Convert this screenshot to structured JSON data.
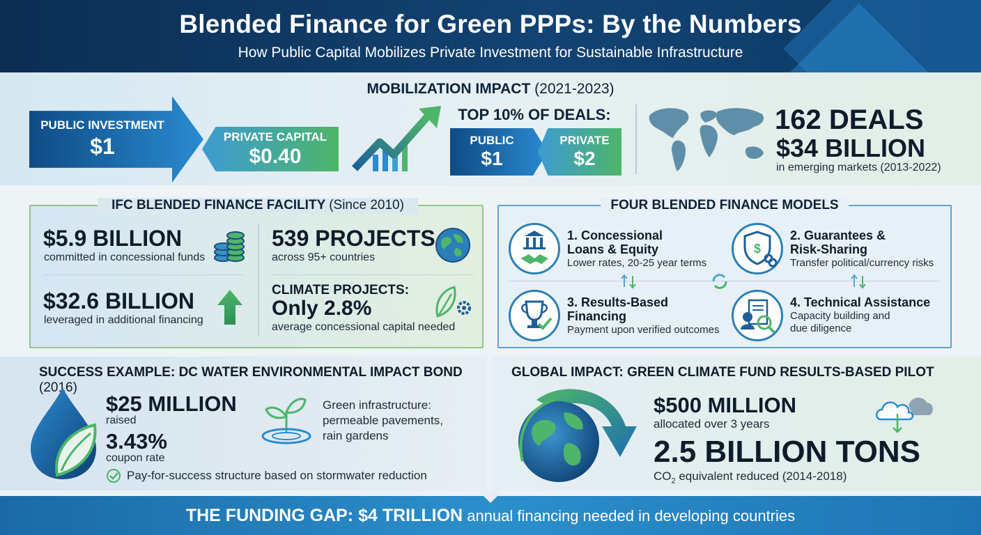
{
  "header": {
    "title": "Blended Finance for Green PPPs: By the Numbers",
    "subtitle": "How Public Capital Mobilizes Private Investment for Sustainable Infrastructure"
  },
  "mobilization": {
    "title": "MOBILIZATION IMPACT",
    "years": "(2021-2023)",
    "public_label": "PUBLIC INVESTMENT",
    "public_value": "$1",
    "private_label": "PRIVATE CAPITAL",
    "private_value": "$0.40",
    "top_title": "TOP 10% OF DEALS:",
    "top_public_label": "PUBLIC",
    "top_public_value": "$1",
    "top_private_label": "PRIVATE",
    "top_private_value": "$2",
    "deals_count": "162 DEALS",
    "deals_value": "$34 BILLION",
    "deals_note": "in emerging markets (2013-2022)"
  },
  "ifc": {
    "title": "IFC BLENDED FINANCE FACILITY",
    "since": "(Since 2010)",
    "committed_value": "$5.9 BILLION",
    "committed_label": "committed in concessional funds",
    "projects_value": "539 PROJECTS",
    "projects_label": "across 95+ countries",
    "leveraged_value": "$32.6 BILLION",
    "leveraged_label": "leveraged in additional financing",
    "climate_title": "CLIMATE PROJECTS:",
    "climate_value": "Only 2.8%",
    "climate_label": "average concessional capital needed"
  },
  "models": {
    "title": "FOUR BLENDED FINANCE MODELS",
    "items": [
      {
        "title_l1": "1. Concessional",
        "title_l2": "Loans & Equity",
        "desc_l1": "Lower rates, 20-25 year terms",
        "desc_l2": ""
      },
      {
        "title_l1": "2. Guarantees &",
        "title_l2": "Risk-Sharing",
        "desc_l1": "Transfer political/currency risks",
        "desc_l2": ""
      },
      {
        "title_l1": "3. Results-Based",
        "title_l2": "Financing",
        "desc_l1": "Payment upon verified outcomes",
        "desc_l2": ""
      },
      {
        "title_l1": "4. Technical Assistance",
        "title_l2": "",
        "desc_l1": "Capacity building and",
        "desc_l2": "due diligence"
      }
    ]
  },
  "dc_water": {
    "title": "SUCCESS EXAMPLE: DC WATER ENVIRONMENTAL IMPACT BOND",
    "year": "(2016)",
    "raised_value": "$25 MILLION",
    "raised_label": "raised",
    "coupon_value": "3.43%",
    "coupon_label": "coupon rate",
    "green_l1": "Green infrastructure:",
    "green_l2": "permeable pavements,",
    "green_l3": "rain gardens",
    "check_note": "Pay-for-success structure based on stormwater reduction"
  },
  "gcf": {
    "title": "GLOBAL IMPACT: GREEN CLIMATE FUND RESULTS-BASED PILOT",
    "allocated_value": "$500 MILLION",
    "allocated_label": "allocated over 3 years",
    "tons_value": "2.5 BILLION TONS",
    "co2_prefix": "CO",
    "co2_sub": "2",
    "co2_suffix": " equivalent reduced (2014-2018)"
  },
  "footer": {
    "strong": "THE FUNDING GAP: $4 TRILLION",
    "rest": " annual financing needed in developing countries"
  },
  "colors": {
    "navy": "#0c2d52",
    "blue": "#2a8bd0",
    "green": "#4eb56a"
  },
  "icons": [
    "growth-chart-icon",
    "world-map-icon",
    "coins-icon",
    "globe-icon",
    "up-arrow-icon",
    "leaf-gear-icon",
    "bank-handshake-icon",
    "shield-chain-icon",
    "trophy-check-icon",
    "document-magnifier-icon",
    "water-drop-leaf-icon",
    "sprout-icon",
    "check-circle-icon",
    "earth-arrow-icon",
    "cloud-download-icon"
  ]
}
